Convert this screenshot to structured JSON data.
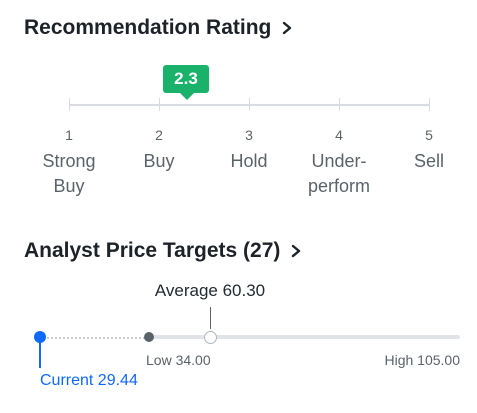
{
  "recommendation": {
    "title": "Recommendation Rating",
    "score": "2.3",
    "scale": [
      {
        "num": "1",
        "label": "Strong Buy"
      },
      {
        "num": "2",
        "label": "Buy"
      },
      {
        "num": "3",
        "label": "Hold"
      },
      {
        "num": "4",
        "label": "Under-perform"
      },
      {
        "num": "5",
        "label": "Sell"
      }
    ],
    "scale_lines": {
      "s0": [
        "Strong",
        "Buy"
      ],
      "s1": [
        "Buy"
      ],
      "s2": [
        "Hold"
      ],
      "s3": [
        "Under-",
        "perform"
      ],
      "s4": [
        "Sell"
      ]
    },
    "badge_color": "#1ab26b"
  },
  "price_targets": {
    "title": "Analyst Price Targets (27)",
    "average_label": "Average 60.30",
    "low_label": "Low 34.00",
    "high_label": "High 105.00",
    "current_label": "Current 29.44",
    "values": {
      "current": 29.44,
      "low": 34.0,
      "average": 60.3,
      "high": 105.0
    },
    "current_color": "#0f69ff"
  },
  "icons": {
    "title_chevron": "chevron-right-icon"
  }
}
